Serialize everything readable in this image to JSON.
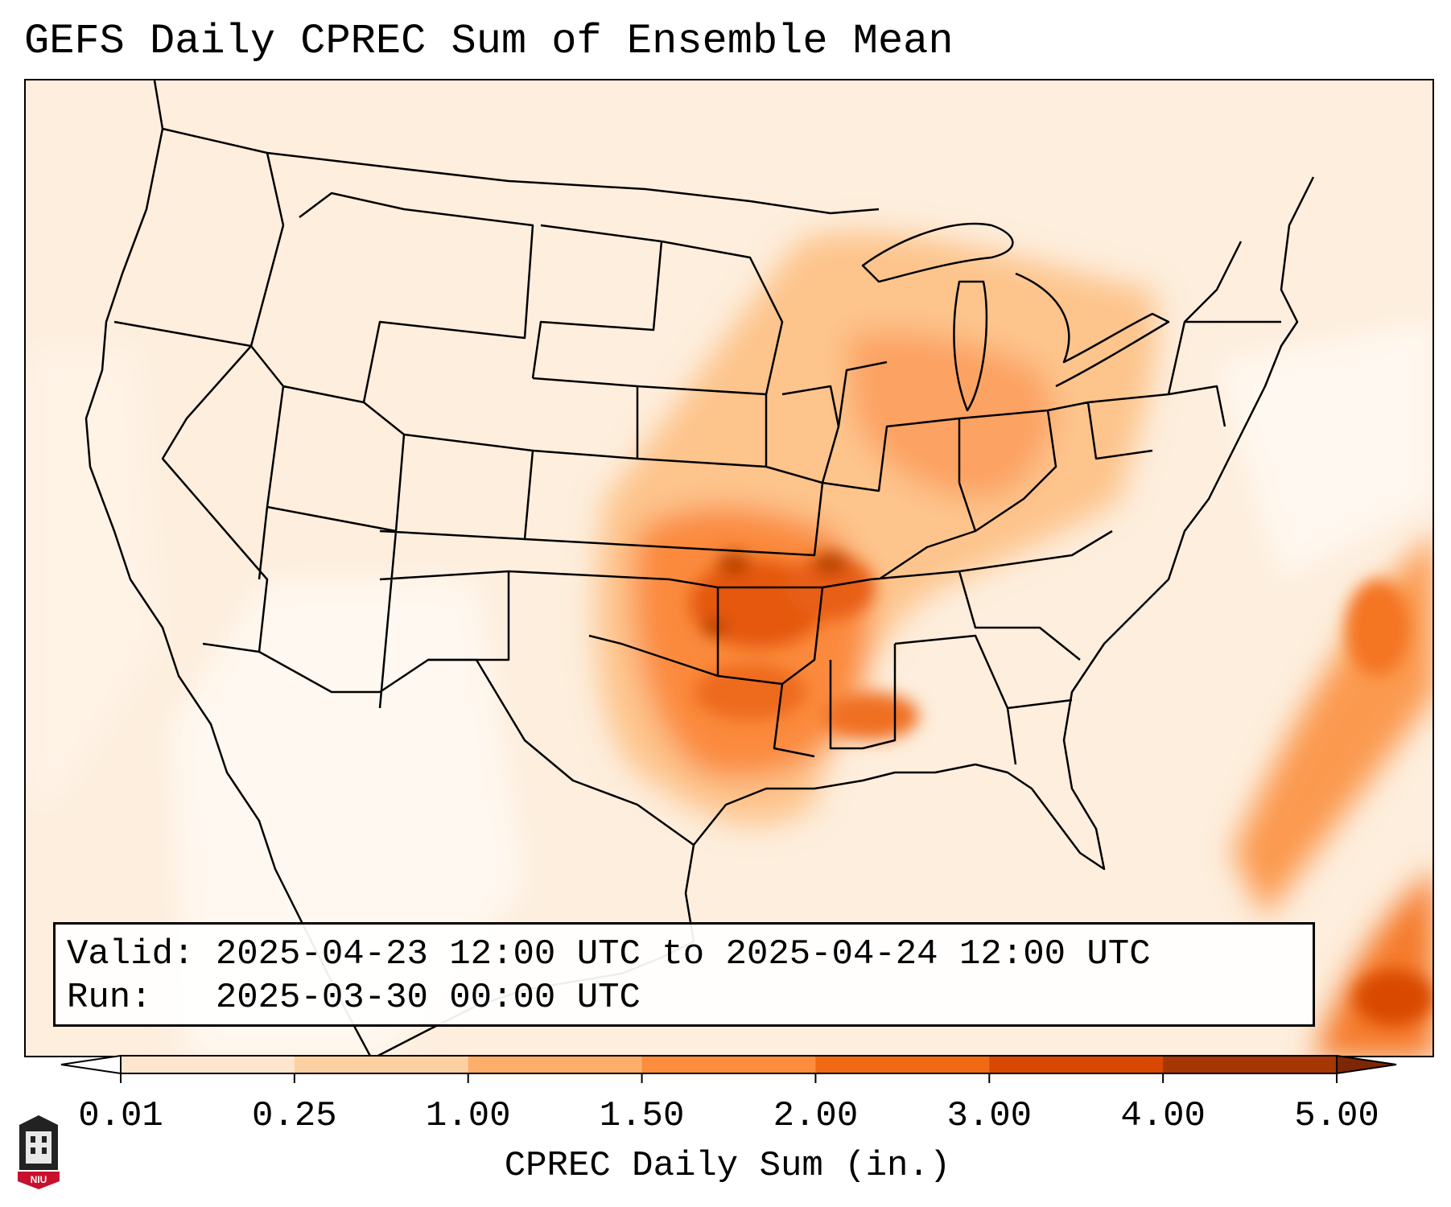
{
  "title": "GEFS Daily CPREC Sum of Ensemble Mean",
  "info": {
    "valid_line": "Valid: 2025-04-23 12:00 UTC to 2025-04-24 12:00 UTC",
    "run_line": "Run:   2025-03-30 00:00 UTC"
  },
  "colorbar": {
    "label": "CPREC Daily Sum (in.)",
    "ticks": [
      "0.01",
      "0.25",
      "1.00",
      "1.50",
      "2.00",
      "3.00",
      "4.00",
      "5.00"
    ],
    "colors": [
      "#fff5eb",
      "#fee6ce",
      "#fdd0a2",
      "#fdae6b",
      "#fd8d3c",
      "#f16913",
      "#d94801",
      "#a63603"
    ],
    "under_color": "#ffffff",
    "over_color": "#7f2704"
  },
  "logo": {
    "text": "NIU",
    "accent": "#c8102e"
  }
}
